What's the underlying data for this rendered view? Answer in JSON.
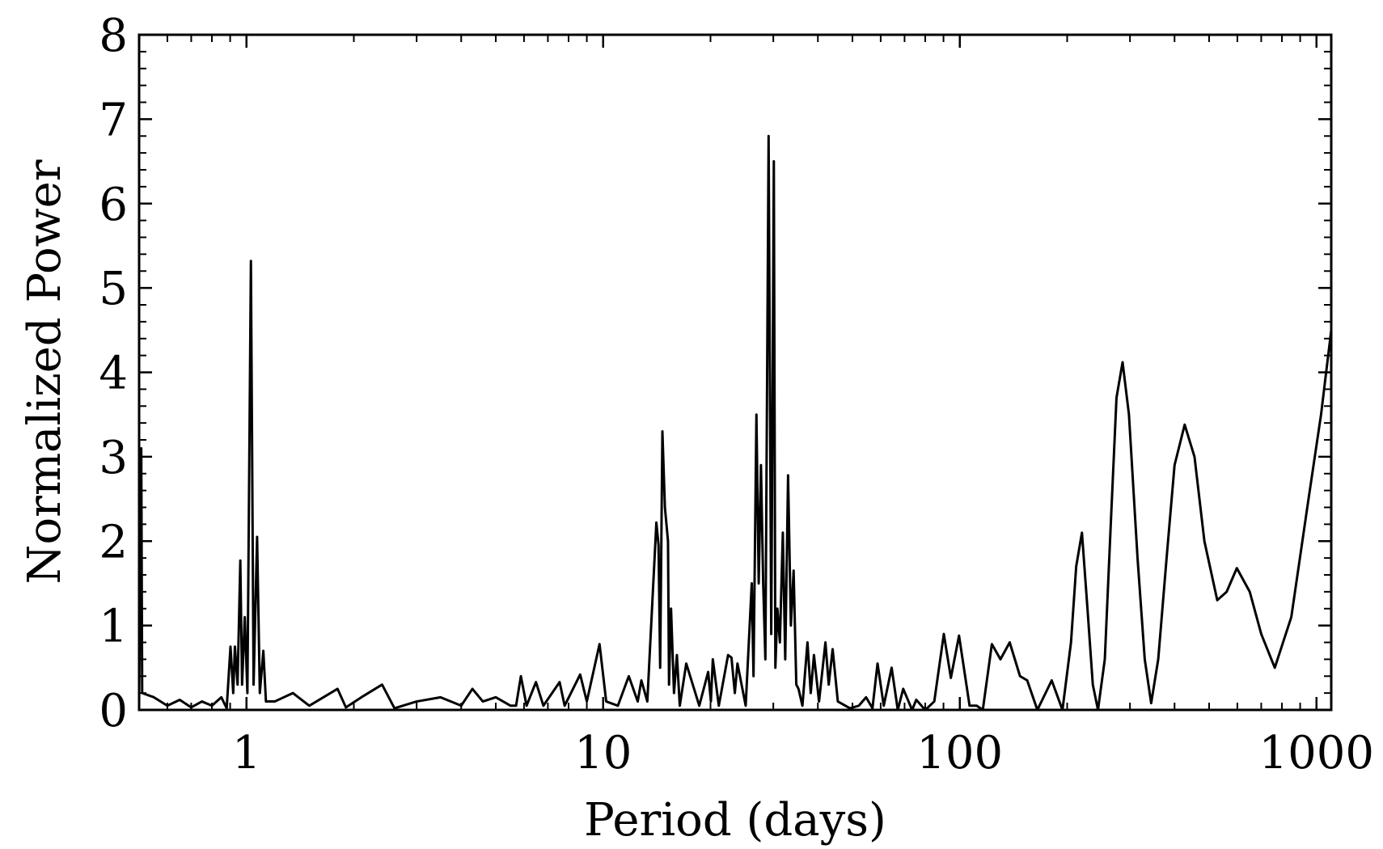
{
  "chart_data": {
    "type": "line",
    "xlabel": "Period (days)",
    "ylabel": "Normalized Power",
    "xscale": "log",
    "xlim": [
      0.5,
      1100
    ],
    "ylim": [
      0,
      8
    ],
    "xticks": [
      1,
      10,
      100,
      1000
    ],
    "yticks": [
      0,
      1,
      2,
      3,
      4,
      5,
      6,
      7,
      8
    ],
    "xminorticks": [
      0.5,
      0.6,
      0.7,
      0.8,
      0.9,
      2,
      3,
      4,
      5,
      6,
      7,
      8,
      9,
      20,
      30,
      40,
      50,
      60,
      70,
      80,
      90,
      200,
      300,
      400,
      500,
      600,
      700,
      800,
      900
    ],
    "yminorticks": [
      0.2,
      0.4,
      0.6,
      0.8,
      1.2,
      1.4,
      1.6,
      1.8,
      2.2,
      2.4,
      2.6,
      2.8,
      3.2,
      3.4,
      3.6,
      3.8,
      4.2,
      4.4,
      4.6,
      4.8,
      5.2,
      5.4,
      5.6,
      5.8,
      6.2,
      6.4,
      6.6,
      6.8,
      7.2,
      7.4,
      7.6,
      7.8
    ],
    "ticks_inside": true,
    "ticks_all_sides": true,
    "grid": false,
    "series": [
      {
        "color": "#000000",
        "x": [
          0.5,
          0.507,
          0.51,
          0.55,
          0.6,
          0.65,
          0.7,
          0.75,
          0.8,
          0.85,
          0.88,
          0.902,
          0.918,
          0.928,
          0.944,
          0.961,
          0.972,
          0.989,
          1.006,
          1.029,
          1.047,
          1.071,
          1.09,
          1.115,
          1.134,
          1.2,
          1.35,
          1.5,
          1.8,
          1.9,
          2.1,
          2.4,
          2.6,
          3.0,
          3.5,
          4.0,
          4.3,
          4.6,
          5.0,
          5.5,
          5.7,
          5.88,
          6.1,
          6.48,
          6.8,
          7.55,
          7.8,
          8.62,
          9.0,
          9.77,
          10.2,
          11,
          11.8,
          12.5,
          12.8,
          13.3,
          14.1,
          14.3,
          14.45,
          14.66,
          14.9,
          15.2,
          15.3,
          15.5,
          15.8,
          16.1,
          16.4,
          17.1,
          18.6,
          19.7,
          20.05,
          20.3,
          21.1,
          22.4,
          22.9,
          23.4,
          23.8,
          25.1,
          26.1,
          26.4,
          26.9,
          27.3,
          27.7,
          28.1,
          28.5,
          29.1,
          29.6,
          30.1,
          30.4,
          30.8,
          31.3,
          31.9,
          32.4,
          33.0,
          33.6,
          34.2,
          34.8,
          35.3,
          36.2,
          37.4,
          38.2,
          39.0,
          40.3,
          42.0,
          42.9,
          44.0,
          45.5,
          49.2,
          52.1,
          54.6,
          56.9,
          58.8,
          61.2,
          64.4,
          67.0,
          69.4,
          73.5,
          75.5,
          80,
          84.8,
          90.2,
          94.4,
          99.5,
          106.5,
          111.5,
          116,
          123,
          130,
          138,
          147.5,
          154.5,
          165,
          181,
          194,
          205,
          212,
          220,
          228,
          236,
          244,
          255,
          265,
          275,
          286,
          298,
          315,
          330,
          344,
          360,
          380,
          400,
          427,
          455,
          485,
          527,
          560,
          598,
          650,
          700,
          764,
          850,
          950,
          1030,
          1100
        ],
        "values": [
          0.1,
          3.1,
          0.2,
          0.15,
          0.05,
          0.12,
          0.03,
          0.1,
          0.05,
          0.15,
          0.02,
          0.75,
          0.2,
          0.75,
          0.3,
          1.77,
          0.3,
          1.1,
          0.2,
          5.32,
          0.3,
          2.05,
          0.2,
          0.7,
          0.1,
          0.1,
          0.2,
          0.05,
          0.25,
          0.03,
          0.15,
          0.3,
          0.02,
          0.1,
          0.15,
          0.05,
          0.25,
          0.1,
          0.15,
          0.05,
          0.05,
          0.4,
          0.05,
          0.33,
          0.05,
          0.33,
          0.05,
          0.42,
          0.1,
          0.78,
          0.1,
          0.05,
          0.4,
          0.1,
          0.35,
          0.1,
          2.22,
          1.95,
          0.5,
          3.3,
          2.4,
          2.0,
          0.3,
          1.2,
          0.2,
          0.65,
          0.05,
          0.55,
          0.05,
          0.45,
          0.1,
          0.6,
          0.05,
          0.65,
          0.62,
          0.2,
          0.55,
          0.05,
          1.5,
          0.4,
          3.5,
          1.5,
          2.9,
          1.5,
          0.6,
          6.8,
          0.9,
          6.5,
          0.5,
          1.2,
          0.8,
          2.1,
          0.6,
          2.78,
          1.0,
          1.65,
          0.3,
          0.25,
          0.05,
          0.8,
          0.2,
          0.65,
          0.1,
          0.8,
          0.3,
          0.72,
          0.1,
          0.02,
          0.05,
          0.15,
          0.02,
          0.55,
          0.05,
          0.5,
          0.0,
          0.25,
          0.0,
          0.12,
          0.0,
          0.1,
          0.9,
          0.38,
          0.88,
          0.05,
          0.05,
          0.0,
          0.78,
          0.6,
          0.8,
          0.4,
          0.35,
          0.0,
          0.35,
          0.0,
          0.8,
          1.7,
          2.1,
          1.2,
          0.3,
          0.0,
          0.6,
          2.2,
          3.7,
          4.12,
          3.5,
          1.8,
          0.6,
          0.08,
          0.6,
          1.8,
          2.9,
          3.38,
          3.0,
          2.0,
          1.3,
          1.4,
          1.68,
          1.4,
          0.9,
          0.5,
          1.1,
          2.5,
          3.5,
          4.5
        ]
      }
    ]
  }
}
